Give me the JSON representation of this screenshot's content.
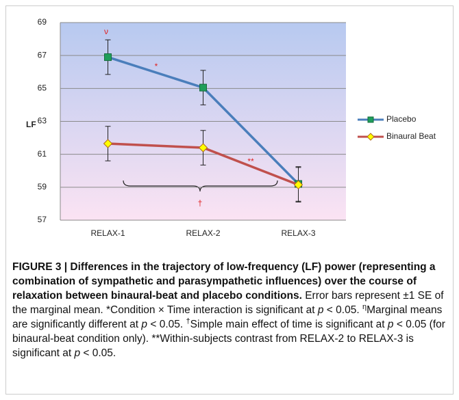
{
  "chart_data": {
    "type": "line",
    "categories": [
      "RELAX-1",
      "RELAX-2",
      "RELAX-3"
    ],
    "series": [
      {
        "name": "Placebo",
        "color": "#4a7ebb",
        "marker": "square",
        "marker_color": "#1f9e5a",
        "values": [
          66.9,
          65.05,
          59.2
        ],
        "errors": [
          1.05,
          1.05,
          1.05
        ]
      },
      {
        "name": "Binaural Beat",
        "color": "#c0504d",
        "marker": "diamond",
        "marker_color": "#ffff00",
        "values": [
          61.65,
          61.4,
          59.15
        ],
        "errors": [
          1.05,
          1.05,
          1.05
        ]
      }
    ],
    "ylabel": "LF",
    "ylim": [
      57,
      69
    ],
    "yticks": [
      57,
      59,
      61,
      63,
      65,
      67,
      69
    ],
    "grid": true,
    "legend": "right",
    "annotations": [
      "ν",
      "*",
      "**",
      "†"
    ]
  },
  "caption": [
    {
      "text": "FIGURE 3 | Differences in the trajectory of low-frequency (LF) power (representing a combination of sympathetic and parasympathetic influences) over the course of relaxation between binaural-beat and placebo conditions.",
      "style": "bold"
    },
    {
      "text": " Error bars represent ±1 SE of the marginal mean. *Condition × Time interaction is significant at ",
      "style": "normal"
    },
    {
      "text": "p",
      "style": "italic"
    },
    {
      "text": " < 0.05. ",
      "style": "normal"
    },
    {
      "text": "η",
      "style": "sup"
    },
    {
      "text": "Marginal means are significantly different at ",
      "style": "normal"
    },
    {
      "text": "p",
      "style": "italic"
    },
    {
      "text": " < 0.05. ",
      "style": "normal"
    },
    {
      "text": "†",
      "style": "sup"
    },
    {
      "text": "Simple main effect of time is significant at ",
      "style": "normal"
    },
    {
      "text": "p",
      "style": "italic"
    },
    {
      "text": " < 0.05 (for binaural-beat condition only). **Within-subjects contrast from RELAX-2 to RELAX-3 is significant at ",
      "style": "normal"
    },
    {
      "text": "p",
      "style": "italic"
    },
    {
      "text": " < 0.05.",
      "style": "normal"
    }
  ]
}
